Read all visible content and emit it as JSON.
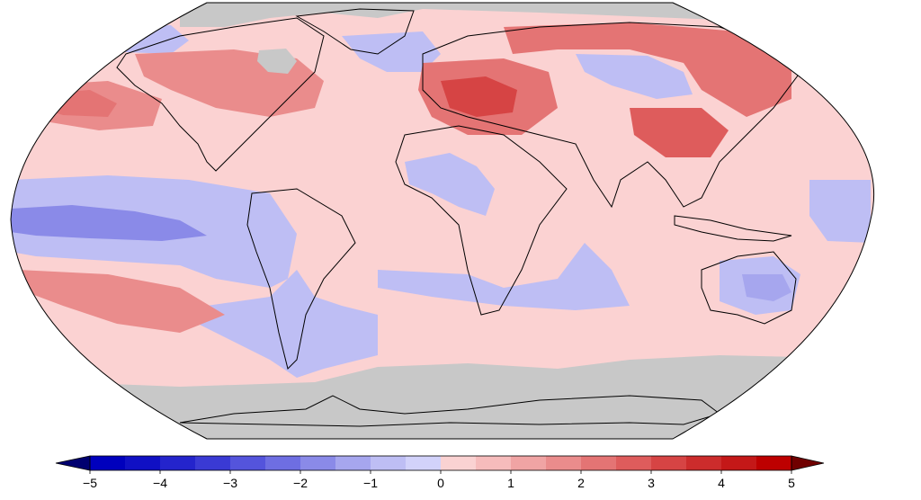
{
  "map": {
    "projection": "robinson",
    "background_color": "#fbd2d2",
    "no_data_color": "#c8c8c8",
    "coastline_color": "#000000",
    "land_overlay": "country-borders",
    "anomaly_regions": [
      {
        "id": "arctic-gray",
        "value": null
      },
      {
        "id": "antarctic-gray",
        "value": null
      },
      {
        "id": "hudson-bay-gray",
        "value": null
      },
      {
        "id": "east-pacific-cool",
        "value": -1
      },
      {
        "id": "east-pacific-core",
        "value": -2
      },
      {
        "id": "south-atlantic-cool",
        "value": -1
      },
      {
        "id": "southern-indian-cool",
        "value": -1
      },
      {
        "id": "africa-cool",
        "value": -1
      },
      {
        "id": "australia-cool",
        "value": -1
      },
      {
        "id": "australia-core",
        "value": -1.5
      },
      {
        "id": "central-asia-cool",
        "value": -1
      },
      {
        "id": "north-atlantic-cool",
        "value": -1
      },
      {
        "id": "greenland-cool",
        "value": -1
      },
      {
        "id": "europe-warm",
        "value": 2
      },
      {
        "id": "europe-core",
        "value": 3
      },
      {
        "id": "siberia-warm",
        "value": 2
      },
      {
        "id": "east-asia-warm",
        "value": 2.5
      },
      {
        "id": "alaska-warm",
        "value": 1.5
      },
      {
        "id": "north-pacific-warm",
        "value": 2
      },
      {
        "id": "canada-warm",
        "value": 1.5
      },
      {
        "id": "south-pacific-warm",
        "value": 1.5
      },
      {
        "id": "west-pacific-cool",
        "value": -1
      }
    ]
  },
  "legend": {
    "min": -5,
    "max": 5,
    "step": 0.5,
    "tick_labels": [
      "−5",
      "−4",
      "−3",
      "−2",
      "−1",
      "0",
      "1",
      "2",
      "3",
      "4",
      "5"
    ],
    "colors": [
      "#0000bd",
      "#1010c4",
      "#2424cc",
      "#3a3ad4",
      "#5454dc",
      "#6e6ee2",
      "#8a8ae8",
      "#a6a6ee",
      "#bebef4",
      "#d2d2fa",
      "#fad2d2",
      "#f6bcbc",
      "#f0a4a4",
      "#ea8c8c",
      "#e47474",
      "#de5c5c",
      "#d64444",
      "#cc2c2c",
      "#c41818",
      "#bd0000"
    ],
    "low_extension_color": "#000070",
    "high_extension_color": "#700000"
  }
}
